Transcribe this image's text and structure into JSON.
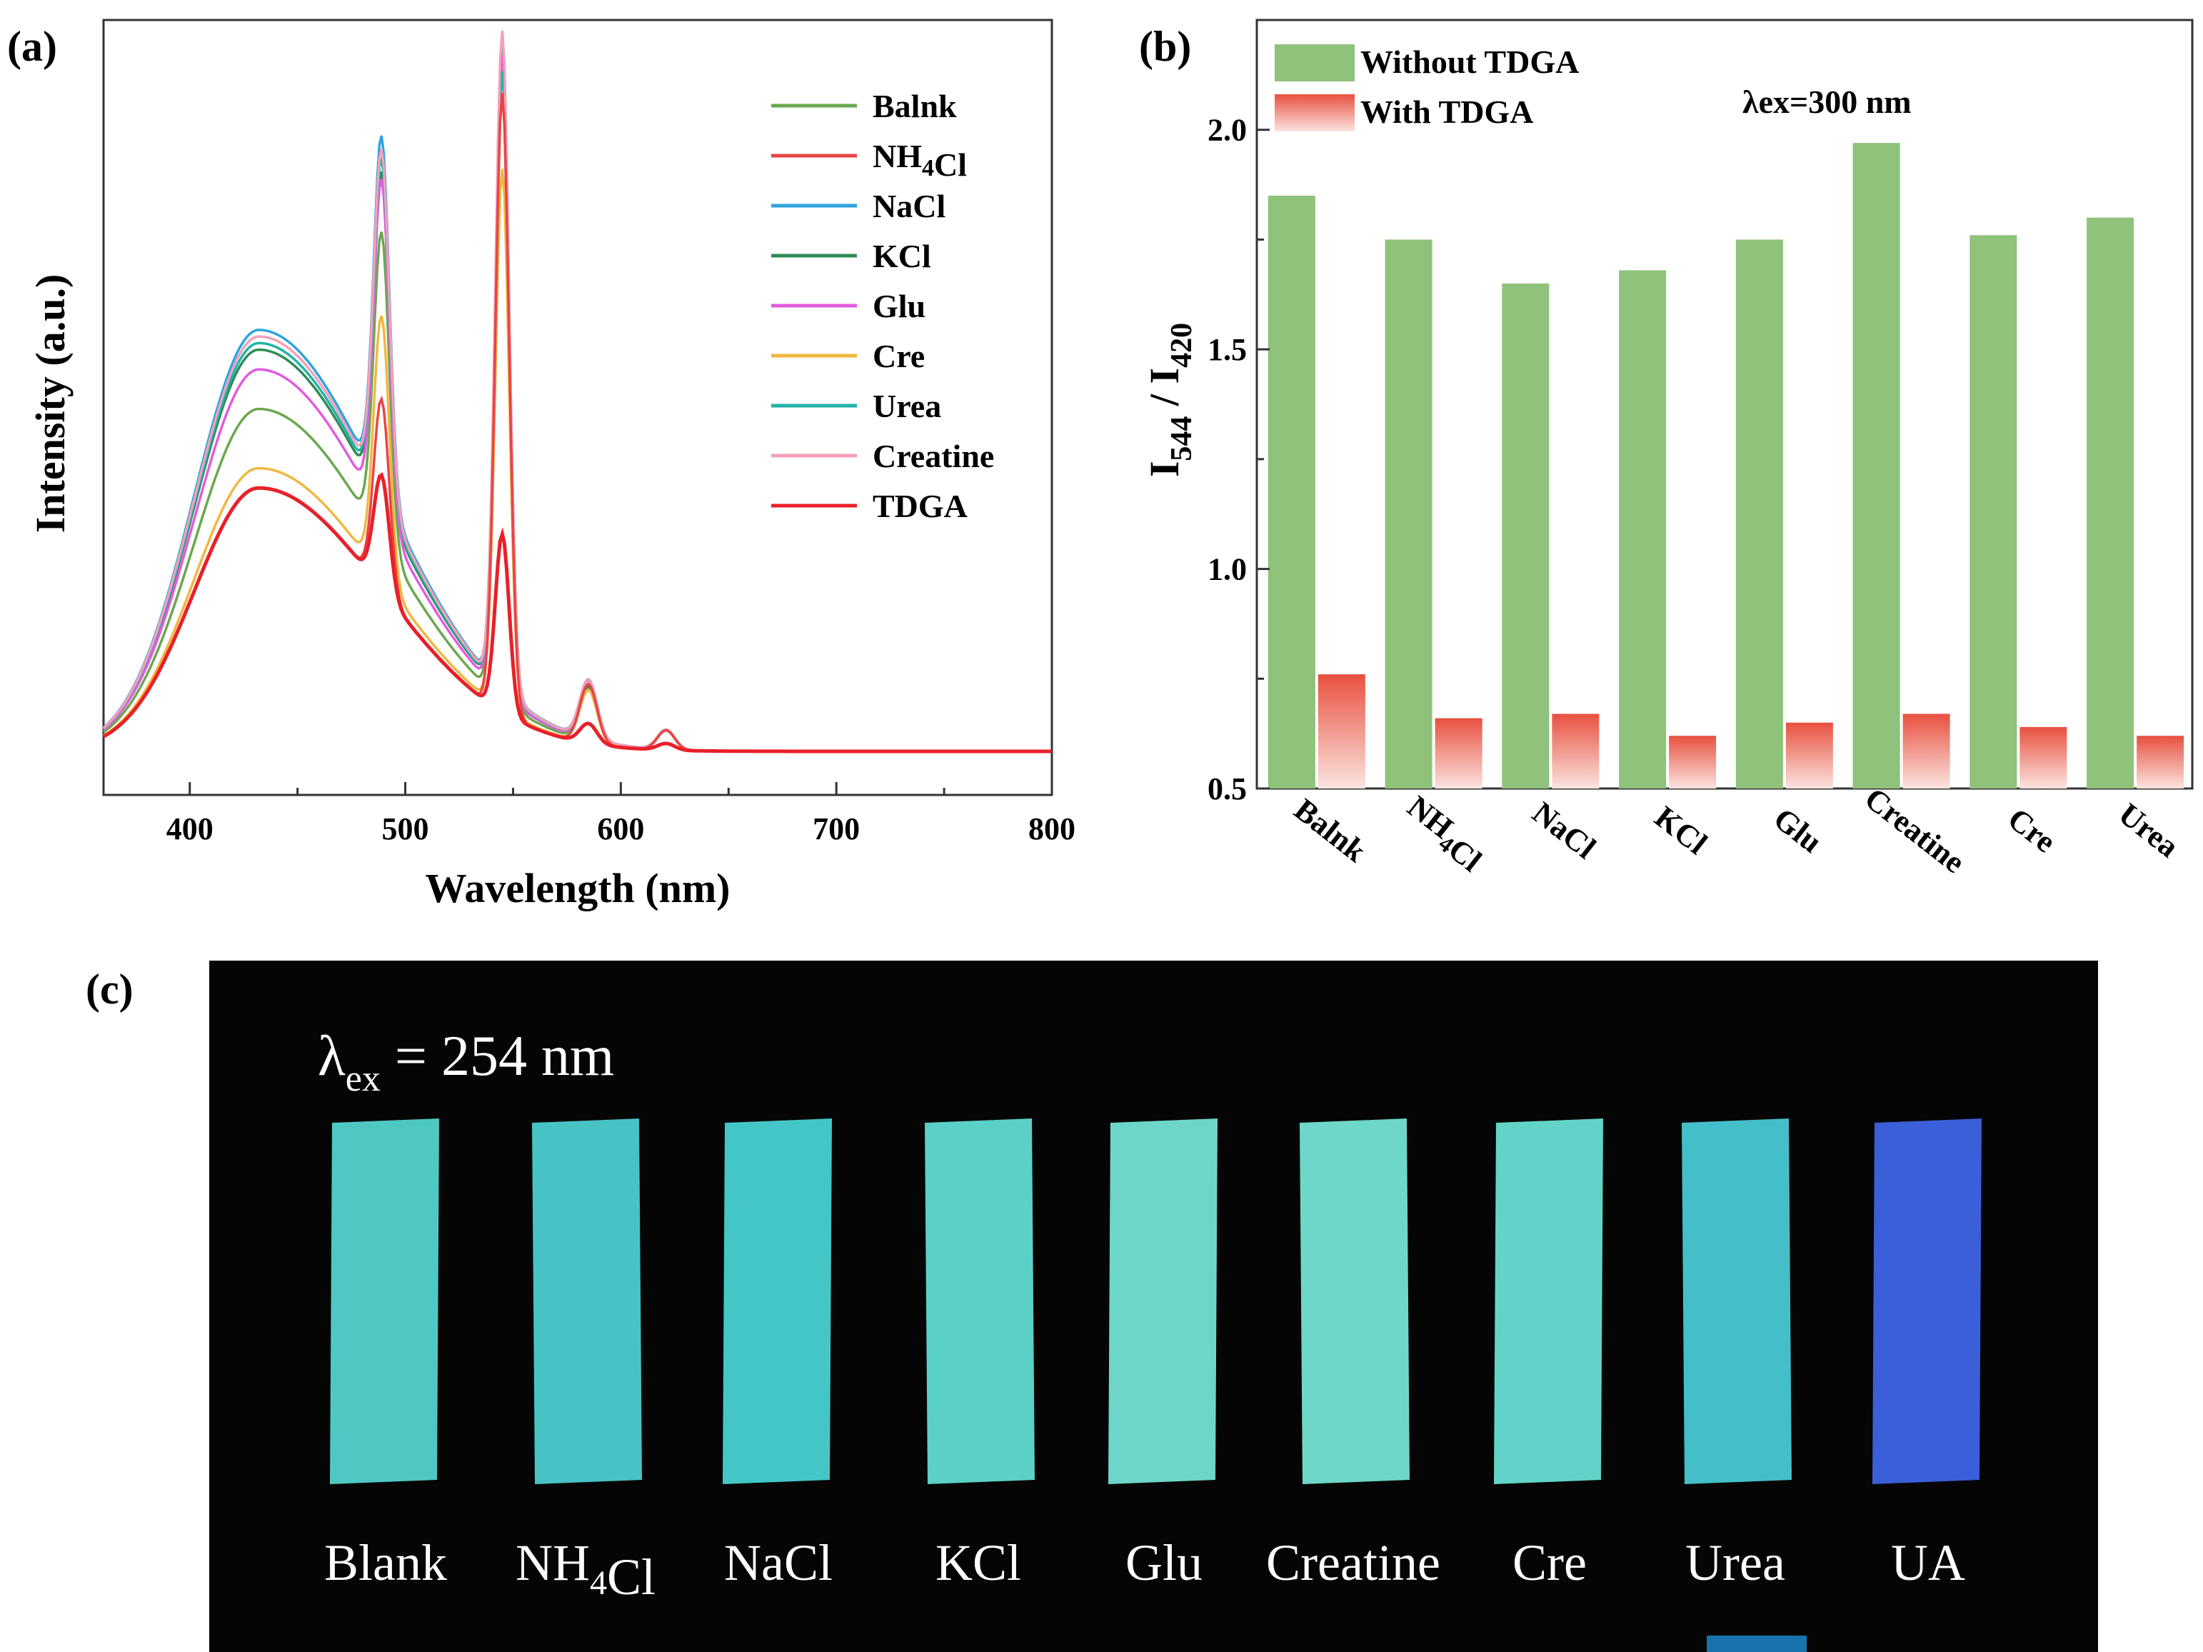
{
  "panel_labels": {
    "a": "(a)",
    "b": "(b)",
    "c": "(c)"
  },
  "chart_data": [
    {
      "type": "line",
      "panel": "(a)",
      "xlabel": "Wavelength (nm)",
      "ylabel": "Intensity (a.u.)",
      "xlim": [
        360,
        800
      ],
      "ylim": [
        0,
        100
      ],
      "xticks": [
        400,
        500,
        600,
        700,
        800
      ],
      "legend_position": "top-right",
      "series": [
        {
          "name": "Balnk",
          "color": "#6aa84f",
          "broad_peak": 52,
          "peak_488": 65,
          "peak_544": 92,
          "peak_585": 8,
          "peak_620": 3
        },
        {
          "name": "NH4Cl",
          "color": "#e84545",
          "broad_peak": 40,
          "peak_488": 40,
          "peak_544": 94,
          "peak_585": 9,
          "peak_620": 3
        },
        {
          "name": "NaCl",
          "color": "#2ea3e0",
          "broad_peak": 64,
          "peak_488": 75,
          "peak_544": 98,
          "peak_585": 9,
          "peak_620": 3
        },
        {
          "name": "KCl",
          "color": "#2e8b57",
          "broad_peak": 61,
          "peak_488": 70,
          "peak_544": 96,
          "peak_585": 8,
          "peak_620": 3
        },
        {
          "name": "Glu",
          "color": "#e25be0",
          "broad_peak": 58,
          "peak_488": 71,
          "peak_544": 97,
          "peak_585": 9,
          "peak_620": 3
        },
        {
          "name": "Cre",
          "color": "#f0b840",
          "broad_peak": 43,
          "peak_488": 55,
          "peak_544": 82,
          "peak_585": 8,
          "peak_620": 3
        },
        {
          "name": "Urea",
          "color": "#20b2aa",
          "broad_peak": 62,
          "peak_488": 72,
          "peak_544": 94,
          "peak_585": 9,
          "peak_620": 3
        },
        {
          "name": "Creatine",
          "color": "#f4a0b8",
          "broad_peak": 63,
          "peak_488": 73,
          "peak_544": 100,
          "peak_585": 9,
          "peak_620": 3
        },
        {
          "name": "TDGA",
          "color": "#e8202a",
          "broad_peak": 40,
          "peak_488": 24,
          "peak_544": 27,
          "peak_585": 3,
          "peak_620": 1
        }
      ]
    },
    {
      "type": "bar",
      "panel": "(b)",
      "ylabel": "I544 / I420",
      "ylim": [
        0.5,
        2.25
      ],
      "yticks": [
        "0.5",
        "1.0",
        "1.5",
        "2.0"
      ],
      "categories": [
        "Balnk",
        "NH4Cl",
        "NaCl",
        "KCl",
        "Glu",
        "Creatine",
        "Cre",
        "Urea"
      ],
      "series": [
        {
          "name": "Without TDGA",
          "color": "#8fc27a",
          "values": [
            1.85,
            1.75,
            1.65,
            1.68,
            1.75,
            1.97,
            1.76,
            1.8
          ]
        },
        {
          "name": "With TDGA",
          "color": "#e05a4a",
          "values": [
            0.76,
            0.66,
            0.67,
            0.62,
            0.65,
            0.67,
            0.64,
            0.62
          ]
        }
      ],
      "annotation": "λex=300 nm",
      "legend_position": "top-left"
    }
  ],
  "photo": {
    "panel": "(c)",
    "excitation_note": "λex = 254 nm",
    "strips": [
      {
        "label": "Blank",
        "color": "#4fc8c4"
      },
      {
        "label": "NH4Cl",
        "color": "#47c3c6"
      },
      {
        "label": "NaCl",
        "color": "#45c6c6"
      },
      {
        "label": "KCl",
        "color": "#5ad0c6"
      },
      {
        "label": "Glu",
        "color": "#6dd6c8"
      },
      {
        "label": "Creatine",
        "color": "#6ed7c8"
      },
      {
        "label": "Cre",
        "color": "#62d4c7"
      },
      {
        "label": "Urea",
        "color": "#44bfc9"
      },
      {
        "label": "UA",
        "color": "#3a5fd8"
      }
    ]
  }
}
